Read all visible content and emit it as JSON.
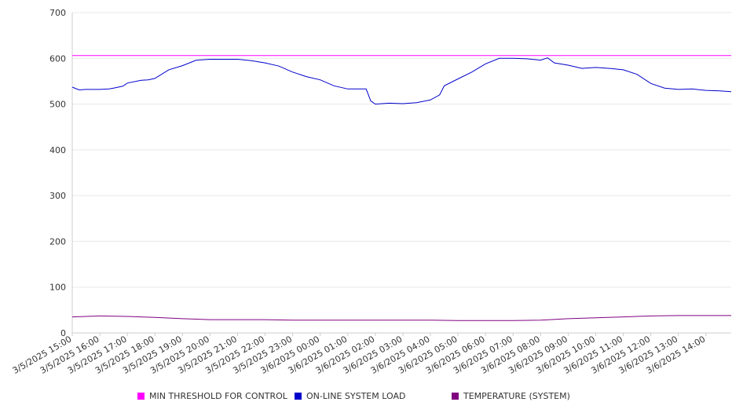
{
  "chart_data": {
    "type": "line",
    "x": [
      "3/5/2025 15:00",
      "3/5/2025 16:00",
      "3/5/2025 17:00",
      "3/5/2025 18:00",
      "3/5/2025 19:00",
      "3/5/2025 20:00",
      "3/5/2025 21:00",
      "3/5/2025 22:00",
      "3/5/2025 23:00",
      "3/6/2025 00:00",
      "3/6/2025 01:00",
      "3/6/2025 02:00",
      "3/6/2025 03:00",
      "3/6/2025 04:00",
      "3/6/2025 05:00",
      "3/6/2025 06:00",
      "3/6/2025 07:00",
      "3/6/2025 08:00",
      "3/6/2025 09:00",
      "3/6/2025 10:00",
      "3/6/2025 11:00",
      "3/6/2025 12:00",
      "3/6/2025 13:00",
      "3/6/2025 14:00"
    ],
    "x_end": "3/6/2025 14:55",
    "ylim": [
      0,
      700
    ],
    "yticks": [
      0,
      100,
      200,
      300,
      400,
      500,
      600,
      700
    ],
    "grid": true,
    "legend_position": "bottom",
    "series": [
      {
        "name": "MIN THRESHOLD FOR CONTROL",
        "color": "#ff00ff",
        "x": [
          "3/5/2025 15:00",
          "3/6/2025 14:55"
        ],
        "values": [
          606,
          606
        ]
      },
      {
        "name": "ON-LINE SYSTEM LOAD",
        "color": "#0000cc",
        "x": [
          "3/5/2025 15:00",
          "3/5/2025 15:15",
          "3/5/2025 15:30",
          "3/5/2025 16:00",
          "3/5/2025 16:20",
          "3/5/2025 16:30",
          "3/5/2025 16:50",
          "3/5/2025 17:00",
          "3/5/2025 17:30",
          "3/5/2025 17:45",
          "3/5/2025 18:00",
          "3/5/2025 18:30",
          "3/5/2025 19:00",
          "3/5/2025 19:30",
          "3/5/2025 20:00",
          "3/5/2025 20:30",
          "3/5/2025 21:00",
          "3/5/2025 21:30",
          "3/5/2025 22:00",
          "3/5/2025 22:30",
          "3/5/2025 23:00",
          "3/5/2025 23:30",
          "3/6/2025 00:00",
          "3/6/2025 00:30",
          "3/6/2025 01:00",
          "3/6/2025 01:40",
          "3/6/2025 01:50",
          "3/6/2025 02:00",
          "3/6/2025 02:30",
          "3/6/2025 03:00",
          "3/6/2025 03:30",
          "3/6/2025 04:00",
          "3/6/2025 04:20",
          "3/6/2025 04:30",
          "3/6/2025 05:00",
          "3/6/2025 05:30",
          "3/6/2025 06:00",
          "3/6/2025 06:30",
          "3/6/2025 07:00",
          "3/6/2025 07:30",
          "3/6/2025 08:00",
          "3/6/2025 08:15",
          "3/6/2025 08:30",
          "3/6/2025 09:00",
          "3/6/2025 09:30",
          "3/6/2025 10:00",
          "3/6/2025 10:30",
          "3/6/2025 11:00",
          "3/6/2025 11:30",
          "3/6/2025 12:00",
          "3/6/2025 12:30",
          "3/6/2025 13:00",
          "3/6/2025 13:30",
          "3/6/2025 14:00",
          "3/6/2025 14:30",
          "3/6/2025 14:55"
        ],
        "values": [
          537,
          531,
          532,
          532,
          533,
          535,
          539,
          546,
          552,
          553,
          556,
          575,
          584,
          596,
          598,
          598,
          598,
          595,
          590,
          583,
          570,
          560,
          553,
          540,
          533,
          533,
          507,
          500,
          502,
          501,
          503,
          509,
          520,
          540,
          555,
          570,
          588,
          600,
          600,
          599,
          596,
          601,
          590,
          585,
          578,
          580,
          578,
          575,
          565,
          545,
          535,
          532,
          533,
          530,
          529,
          527
        ]
      },
      {
        "name": "TEMPERATURE (SYSTEM)",
        "color": "#800080",
        "x": [
          "3/5/2025 15:00",
          "3/5/2025 16:00",
          "3/5/2025 17:00",
          "3/5/2025 18:00",
          "3/5/2025 19:00",
          "3/5/2025 20:00",
          "3/5/2025 22:00",
          "3/5/2025 23:00",
          "3/6/2025 00:00",
          "3/6/2025 02:00",
          "3/6/2025 04:00",
          "3/6/2025 05:00",
          "3/6/2025 07:00",
          "3/6/2025 08:00",
          "3/6/2025 09:00",
          "3/6/2025 10:00",
          "3/6/2025 11:00",
          "3/6/2025 12:00",
          "3/6/2025 13:00",
          "3/6/2025 14:55"
        ],
        "values": [
          35,
          37,
          36,
          34,
          31,
          29,
          29,
          28,
          28,
          28,
          28,
          27,
          27,
          28,
          31,
          33,
          35,
          37,
          38,
          38
        ]
      }
    ]
  }
}
